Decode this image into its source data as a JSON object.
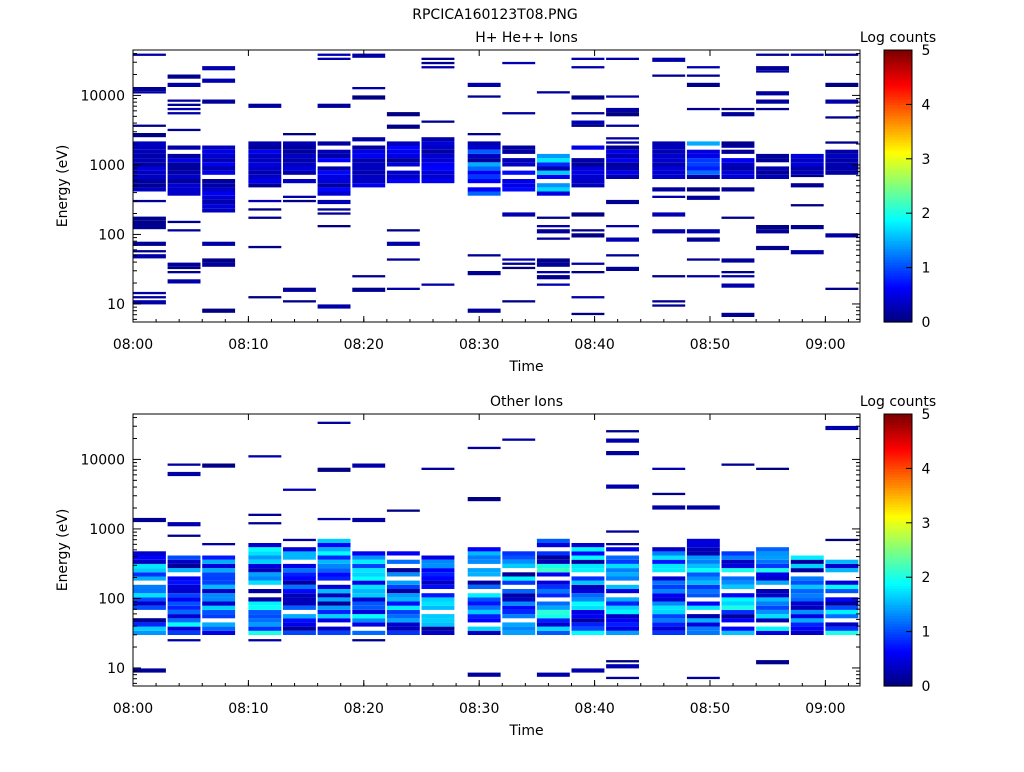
{
  "figure_title": "RPCICA160123T08.PNG",
  "chart_data": [
    {
      "type": "heatmap",
      "title": "H+ He++ Ions",
      "xlabel": "Time",
      "ylabel": "Energy (eV)",
      "colorbar_label": "Log counts",
      "x_ticks": [
        "08:00",
        "08:10",
        "08:20",
        "08:30",
        "08:40",
        "08:50",
        "09:00"
      ],
      "y_ticks": [
        "10",
        "100",
        "1000",
        "10000"
      ],
      "y_scale": "log",
      "ylim": [
        5.5,
        45000
      ],
      "xlim": [
        "08:00",
        "09:03"
      ],
      "colorbar_ticks": [
        "0",
        "1",
        "2",
        "3",
        "4",
        "5"
      ],
      "clim": [
        0,
        5
      ],
      "time_bins": [
        "08:00",
        "08:03",
        "08:06",
        "08:10",
        "08:13",
        "08:16",
        "08:19",
        "08:22",
        "08:25",
        "08:29",
        "08:32",
        "08:35",
        "08:38",
        "08:41",
        "08:45",
        "08:48",
        "08:51",
        "08:54",
        "08:57",
        "09:00"
      ],
      "seed": 11,
      "columns": [
        {
          "band": [
            400,
            2000
          ],
          "hi": 0.35,
          "sparse": 22
        },
        {
          "band": [
            350,
            1800
          ],
          "hi": 0.4,
          "sparse": 20
        },
        {
          "band": [
            200,
            1700
          ],
          "hi": 0.45,
          "sparse": 18
        },
        {
          "band": [
            450,
            2200
          ],
          "hi": 0.5,
          "sparse": 20
        },
        {
          "band": [
            500,
            2000
          ],
          "hi": 0.55,
          "sparse": 18
        },
        {
          "band": [
            300,
            2000
          ],
          "hi": 0.6,
          "sparse": 22
        },
        {
          "band": [
            450,
            1900
          ],
          "hi": 0.55,
          "sparse": 16
        },
        {
          "band": [
            500,
            2000
          ],
          "hi": 0.55,
          "sparse": 18
        },
        {
          "band": [
            500,
            2100
          ],
          "hi": 0.6,
          "sparse": 16
        },
        {
          "band": [
            350,
            1800
          ],
          "hi": 1.6,
          "sparse": 18
        },
        {
          "band": [
            400,
            1900
          ],
          "hi": 0.6,
          "sparse": 18
        },
        {
          "band": [
            350,
            1900
          ],
          "hi": 1.7,
          "sparse": 18
        },
        {
          "band": [
            450,
            1700
          ],
          "hi": 0.5,
          "sparse": 16
        },
        {
          "band": [
            600,
            1900
          ],
          "hi": 0.45,
          "sparse": 18
        },
        {
          "band": [
            600,
            1700
          ],
          "hi": 0.4,
          "sparse": 14
        },
        {
          "band": [
            550,
            2000
          ],
          "hi": 1.7,
          "sparse": 18
        },
        {
          "band": [
            600,
            1200
          ],
          "hi": 0.5,
          "sparse": 16
        },
        {
          "band": [
            600,
            1300
          ],
          "hi": 0.4,
          "sparse": 16
        },
        {
          "band": [
            650,
            1400
          ],
          "hi": 0.35,
          "sparse": 16
        },
        {
          "band": [
            700,
            1500
          ],
          "hi": 0.3,
          "sparse": 16
        }
      ]
    },
    {
      "type": "heatmap",
      "title": "Other Ions",
      "xlabel": "Time",
      "ylabel": "Energy (eV)",
      "colorbar_label": "Log counts",
      "x_ticks": [
        "08:00",
        "08:10",
        "08:20",
        "08:30",
        "08:40",
        "08:50",
        "09:00"
      ],
      "y_ticks": [
        "10",
        "100",
        "1000",
        "10000"
      ],
      "y_scale": "log",
      "ylim": [
        5.5,
        45000
      ],
      "xlim": [
        "08:00",
        "09:03"
      ],
      "colorbar_ticks": [
        "0",
        "1",
        "2",
        "3",
        "4",
        "5"
      ],
      "clim": [
        0,
        5
      ],
      "time_bins": [
        "08:00",
        "08:03",
        "08:06",
        "08:10",
        "08:13",
        "08:16",
        "08:19",
        "08:22",
        "08:25",
        "08:29",
        "08:32",
        "08:35",
        "08:38",
        "08:41",
        "08:45",
        "08:48",
        "08:51",
        "08:54",
        "08:57",
        "09:00"
      ],
      "seed": 47,
      "columns": [
        {
          "band": [
            27,
            420
          ],
          "hi": 1.7,
          "sparse": 5
        },
        {
          "band": [
            27,
            400
          ],
          "hi": 2.0,
          "sparse": 5
        },
        {
          "band": [
            27,
            380
          ],
          "hi": 1.6,
          "sparse": 6
        },
        {
          "band": [
            27,
            600
          ],
          "hi": 1.9,
          "sparse": 6
        },
        {
          "band": [
            27,
            500
          ],
          "hi": 1.6,
          "sparse": 5
        },
        {
          "band": [
            27,
            650
          ],
          "hi": 1.8,
          "sparse": 6
        },
        {
          "band": [
            27,
            450
          ],
          "hi": 1.8,
          "sparse": 5
        },
        {
          "band": [
            27,
            420
          ],
          "hi": 1.7,
          "sparse": 5
        },
        {
          "band": [
            27,
            400
          ],
          "hi": 1.8,
          "sparse": 5
        },
        {
          "band": [
            27,
            500
          ],
          "hi": 1.8,
          "sparse": 5
        },
        {
          "band": [
            27,
            420
          ],
          "hi": 1.9,
          "sparse": 5
        },
        {
          "band": [
            27,
            700
          ],
          "hi": 2.1,
          "sparse": 5
        },
        {
          "band": [
            27,
            600
          ],
          "hi": 1.8,
          "sparse": 5
        },
        {
          "band": [
            27,
            480
          ],
          "hi": 1.8,
          "sparse": 5
        },
        {
          "band": [
            27,
            500
          ],
          "hi": 1.7,
          "sparse": 5
        },
        {
          "band": [
            27,
            800
          ],
          "hi": 2.0,
          "sparse": 6
        },
        {
          "band": [
            27,
            450
          ],
          "hi": 1.9,
          "sparse": 5
        },
        {
          "band": [
            27,
            480
          ],
          "hi": 2.0,
          "sparse": 5
        },
        {
          "band": [
            27,
            380
          ],
          "hi": 1.8,
          "sparse": 5
        },
        {
          "band": [
            27,
            350
          ],
          "hi": 1.9,
          "sparse": 5
        }
      ]
    }
  ]
}
